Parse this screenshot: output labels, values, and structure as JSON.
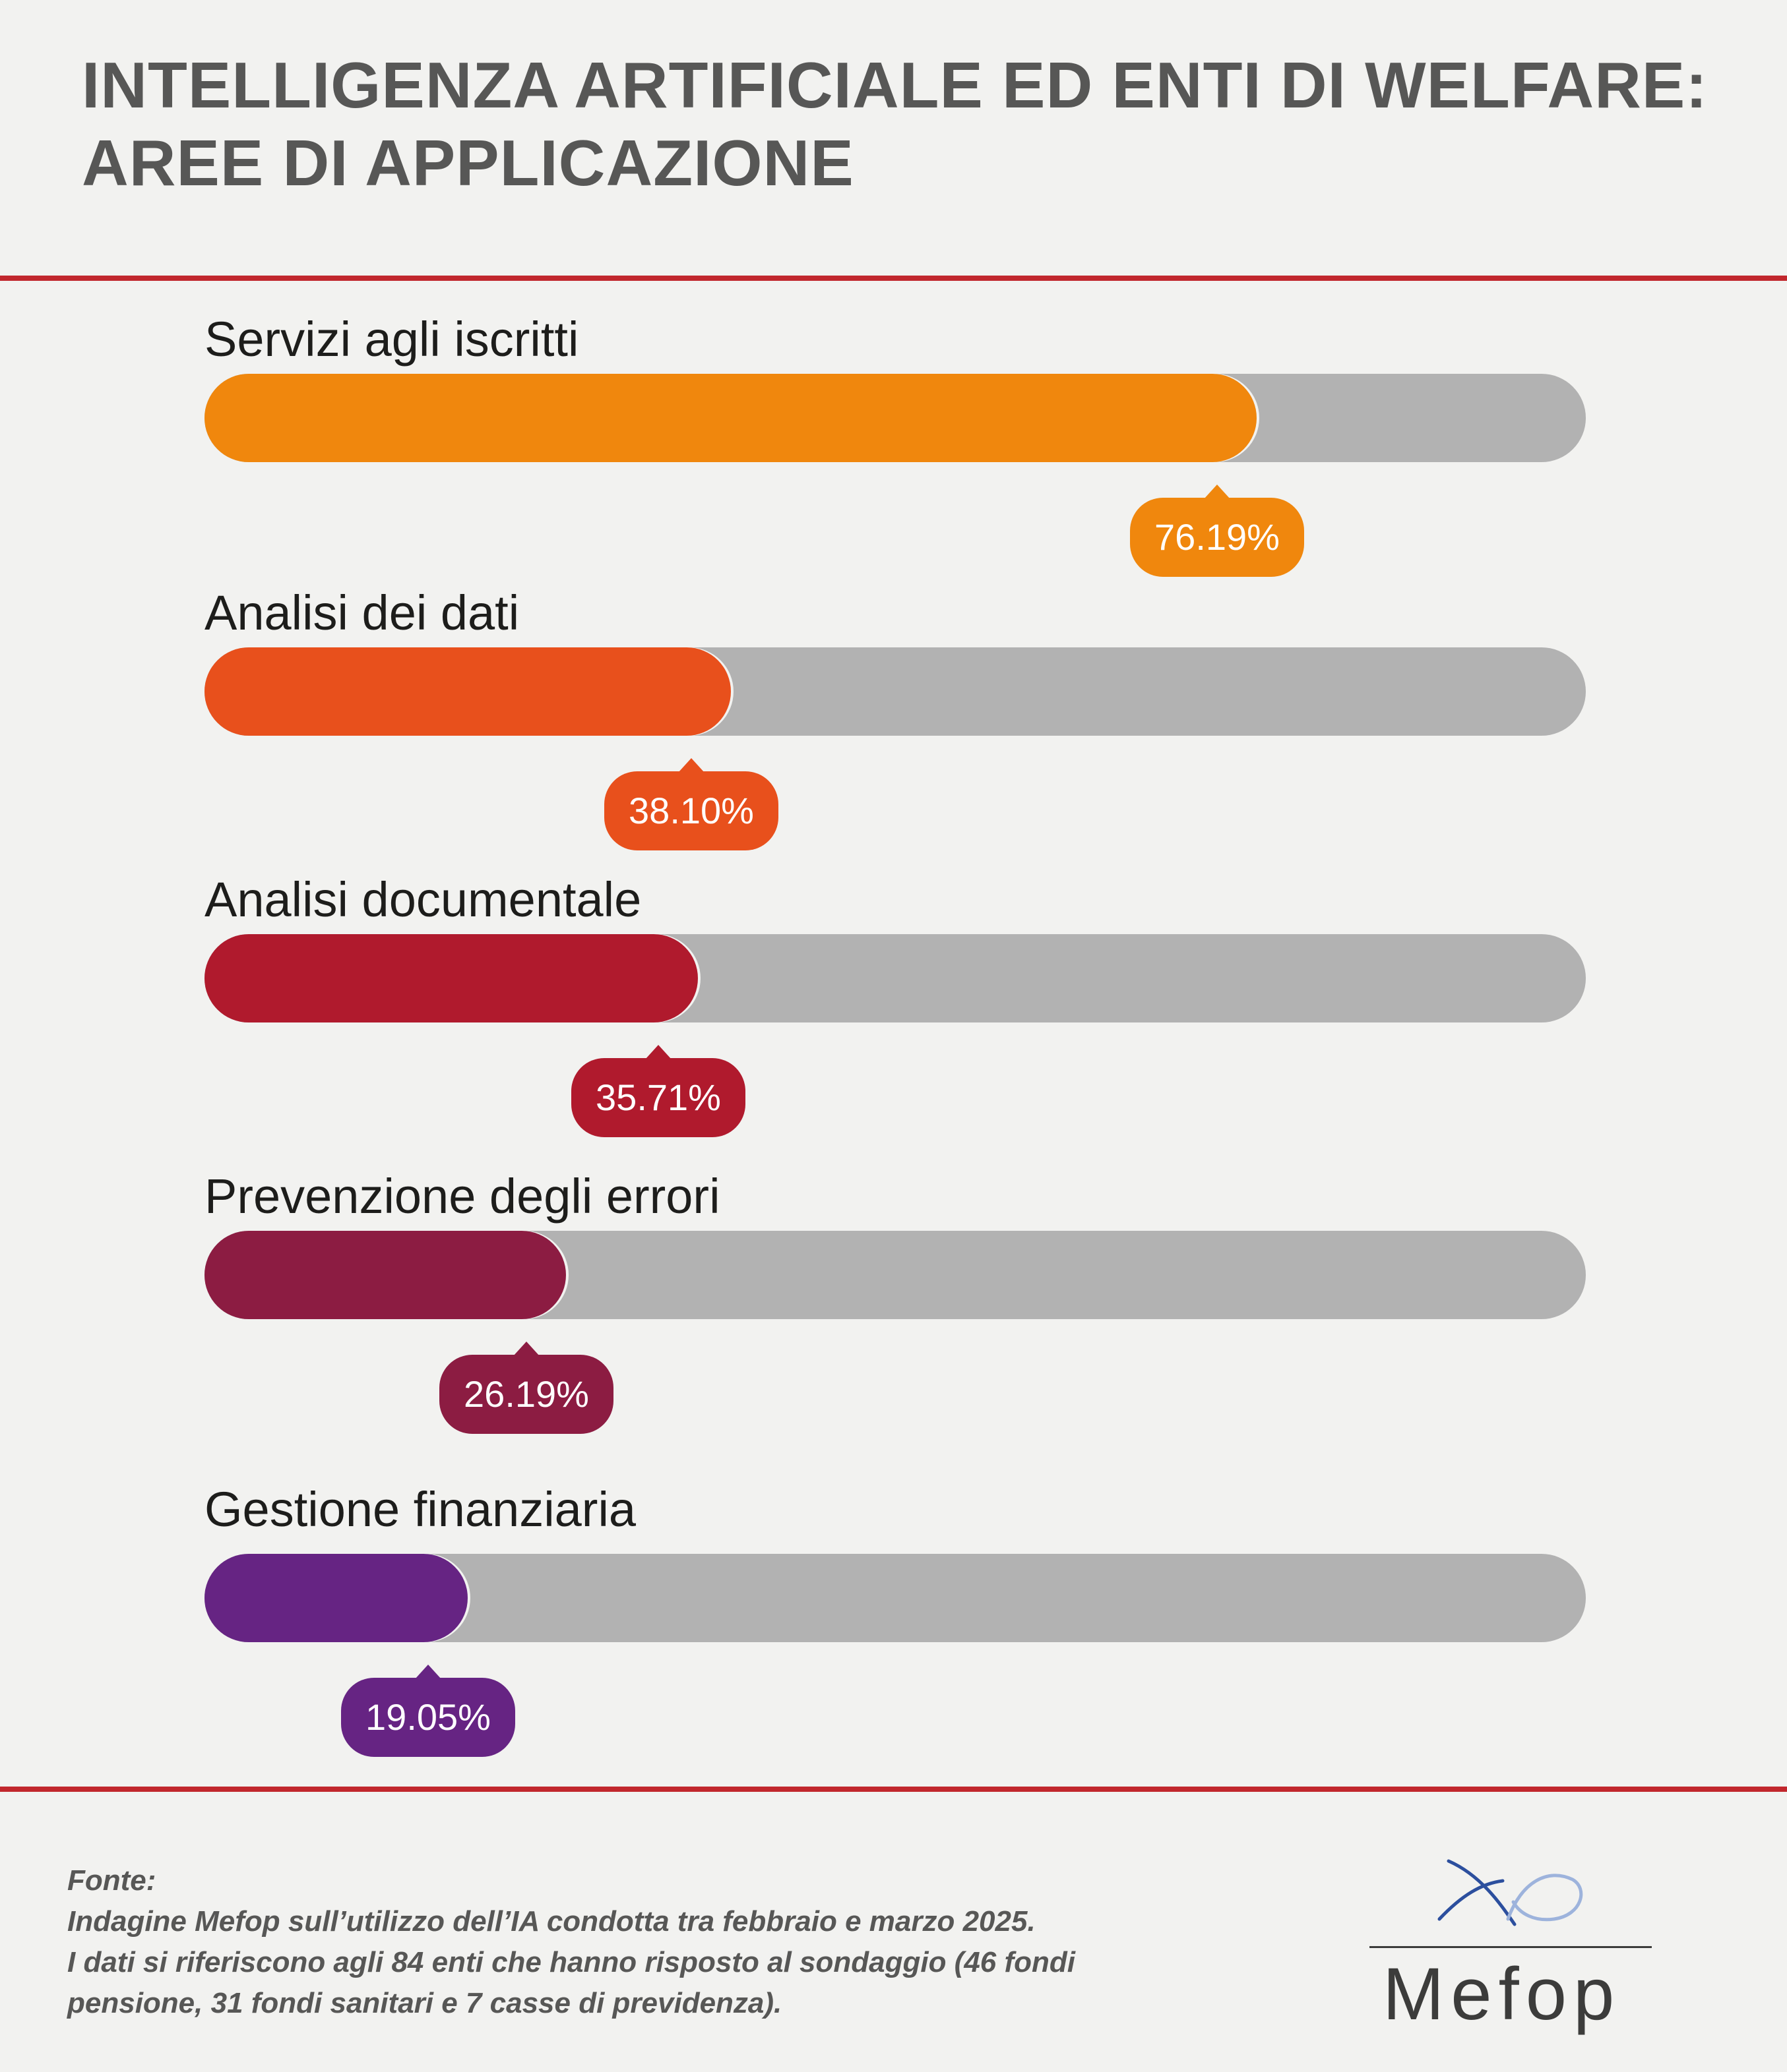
{
  "chart_data": {
    "type": "bar",
    "orientation": "horizontal",
    "title_lines": [
      "INTELLIGENZA ARTIFICIALE ED ENTI DI WELFARE:",
      "AREE DI APPLICAZIONE"
    ],
    "xlim": [
      0,
      100
    ],
    "grid": false,
    "legend": "none",
    "categories": [
      "Servizi agli iscritti",
      "Analisi dei dati",
      "Analisi documentale",
      "Prevenzione degli errori",
      "Gestione finanziaria"
    ],
    "values": [
      76.19,
      38.1,
      35.71,
      26.19,
      19.05
    ],
    "data_labels": [
      "76.19%",
      "38.10%",
      "35.71%",
      "26.19%",
      "19.05%"
    ],
    "colors": [
      "#f0870d",
      "#e8501c",
      "#b01a2d",
      "#8c1c42",
      "#662483"
    ],
    "track_color": "#b2b2b2"
  },
  "source": {
    "heading": "Fonte:",
    "lines": [
      "Indagine Mefop sull’utilizzo dell’IA condotta tra febbraio e marzo 2025.",
      "I dati si riferiscono agli 84 enti che hanno risposto al sondaggio (46 fondi",
      "pensione, 31 fondi sanitari e 7 casse di previdenza)."
    ]
  },
  "logo": {
    "text": "Mefop",
    "icon": "mefop-logo-icon"
  },
  "colors": {
    "background": "#f2f2f0",
    "accent_rule": "#c1272d",
    "title_text": "#575756"
  }
}
